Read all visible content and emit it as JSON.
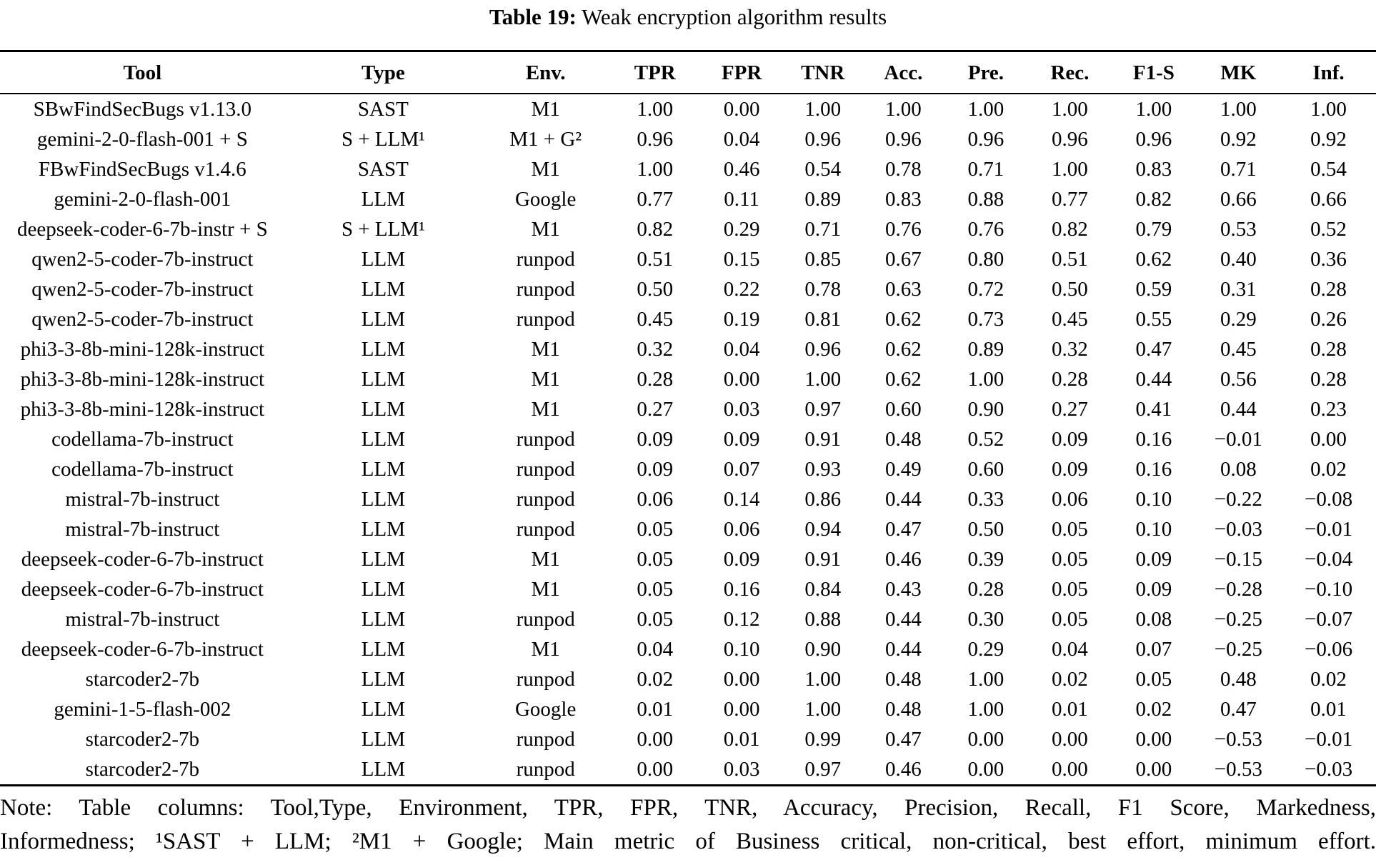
{
  "caption": {
    "label": "Table 19:",
    "text": " Weak encryption algorithm results"
  },
  "table": {
    "columns": [
      "Tool",
      "Type",
      "Env.",
      "TPR",
      "FPR",
      "TNR",
      "Acc.",
      "Pre.",
      "Rec.",
      "F1-S",
      "MK",
      "Inf."
    ],
    "column_widths_pct": [
      20.7,
      14.3,
      9.3,
      6.6,
      6.0,
      5.8,
      5.9,
      6.1,
      6.1,
      6.1,
      6.2,
      6.9
    ],
    "rows": [
      [
        "SBwFindSecBugs v1.13.0",
        "SAST",
        "M1",
        "1.00",
        "0.00",
        "1.00",
        "1.00",
        "1.00",
        "1.00",
        "1.00",
        "1.00",
        "1.00"
      ],
      [
        "gemini-2-0-flash-001 + S",
        "S + LLM¹",
        "M1 + G²",
        "0.96",
        "0.04",
        "0.96",
        "0.96",
        "0.96",
        "0.96",
        "0.96",
        "0.92",
        "0.92"
      ],
      [
        "FBwFindSecBugs v1.4.6",
        "SAST",
        "M1",
        "1.00",
        "0.46",
        "0.54",
        "0.78",
        "0.71",
        "1.00",
        "0.83",
        "0.71",
        "0.54"
      ],
      [
        "gemini-2-0-flash-001",
        "LLM",
        "Google",
        "0.77",
        "0.11",
        "0.89",
        "0.83",
        "0.88",
        "0.77",
        "0.82",
        "0.66",
        "0.66"
      ],
      [
        "deepseek-coder-6-7b-instr + S",
        "S + LLM¹",
        "M1",
        "0.82",
        "0.29",
        "0.71",
        "0.76",
        "0.76",
        "0.82",
        "0.79",
        "0.53",
        "0.52"
      ],
      [
        "qwen2-5-coder-7b-instruct",
        "LLM",
        "runpod",
        "0.51",
        "0.15",
        "0.85",
        "0.67",
        "0.80",
        "0.51",
        "0.62",
        "0.40",
        "0.36"
      ],
      [
        "qwen2-5-coder-7b-instruct",
        "LLM",
        "runpod",
        "0.50",
        "0.22",
        "0.78",
        "0.63",
        "0.72",
        "0.50",
        "0.59",
        "0.31",
        "0.28"
      ],
      [
        "qwen2-5-coder-7b-instruct",
        "LLM",
        "runpod",
        "0.45",
        "0.19",
        "0.81",
        "0.62",
        "0.73",
        "0.45",
        "0.55",
        "0.29",
        "0.26"
      ],
      [
        "phi3-3-8b-mini-128k-instruct",
        "LLM",
        "M1",
        "0.32",
        "0.04",
        "0.96",
        "0.62",
        "0.89",
        "0.32",
        "0.47",
        "0.45",
        "0.28"
      ],
      [
        "phi3-3-8b-mini-128k-instruct",
        "LLM",
        "M1",
        "0.28",
        "0.00",
        "1.00",
        "0.62",
        "1.00",
        "0.28",
        "0.44",
        "0.56",
        "0.28"
      ],
      [
        "phi3-3-8b-mini-128k-instruct",
        "LLM",
        "M1",
        "0.27",
        "0.03",
        "0.97",
        "0.60",
        "0.90",
        "0.27",
        "0.41",
        "0.44",
        "0.23"
      ],
      [
        "codellama-7b-instruct",
        "LLM",
        "runpod",
        "0.09",
        "0.09",
        "0.91",
        "0.48",
        "0.52",
        "0.09",
        "0.16",
        "−0.01",
        "0.00"
      ],
      [
        "codellama-7b-instruct",
        "LLM",
        "runpod",
        "0.09",
        "0.07",
        "0.93",
        "0.49",
        "0.60",
        "0.09",
        "0.16",
        "0.08",
        "0.02"
      ],
      [
        "mistral-7b-instruct",
        "LLM",
        "runpod",
        "0.06",
        "0.14",
        "0.86",
        "0.44",
        "0.33",
        "0.06",
        "0.10",
        "−0.22",
        "−0.08"
      ],
      [
        "mistral-7b-instruct",
        "LLM",
        "runpod",
        "0.05",
        "0.06",
        "0.94",
        "0.47",
        "0.50",
        "0.05",
        "0.10",
        "−0.03",
        "−0.01"
      ],
      [
        "deepseek-coder-6-7b-instruct",
        "LLM",
        "M1",
        "0.05",
        "0.09",
        "0.91",
        "0.46",
        "0.39",
        "0.05",
        "0.09",
        "−0.15",
        "−0.04"
      ],
      [
        "deepseek-coder-6-7b-instruct",
        "LLM",
        "M1",
        "0.05",
        "0.16",
        "0.84",
        "0.43",
        "0.28",
        "0.05",
        "0.09",
        "−0.28",
        "−0.10"
      ],
      [
        "mistral-7b-instruct",
        "LLM",
        "runpod",
        "0.05",
        "0.12",
        "0.88",
        "0.44",
        "0.30",
        "0.05",
        "0.08",
        "−0.25",
        "−0.07"
      ],
      [
        "deepseek-coder-6-7b-instruct",
        "LLM",
        "M1",
        "0.04",
        "0.10",
        "0.90",
        "0.44",
        "0.29",
        "0.04",
        "0.07",
        "−0.25",
        "−0.06"
      ],
      [
        "starcoder2-7b",
        "LLM",
        "runpod",
        "0.02",
        "0.00",
        "1.00",
        "0.48",
        "1.00",
        "0.02",
        "0.05",
        "0.48",
        "0.02"
      ],
      [
        "gemini-1-5-flash-002",
        "LLM",
        "Google",
        "0.01",
        "0.00",
        "1.00",
        "0.48",
        "1.00",
        "0.01",
        "0.02",
        "0.47",
        "0.01"
      ],
      [
        "starcoder2-7b",
        "LLM",
        "runpod",
        "0.00",
        "0.01",
        "0.99",
        "0.47",
        "0.00",
        "0.00",
        "0.00",
        "−0.53",
        "−0.01"
      ],
      [
        "starcoder2-7b",
        "LLM",
        "runpod",
        "0.00",
        "0.03",
        "0.97",
        "0.46",
        "0.00",
        "0.00",
        "0.00",
        "−0.53",
        "−0.03"
      ]
    ]
  },
  "note": {
    "line1": "Note: Table columns: Tool,Type, Environment, TPR, FPR, TNR, Accuracy, Precision, Recall, F1 Score, Markedness,",
    "line2": "Informedness; ¹SAST + LLM; ²M1 + Google; Main metric of Business critical, non-critical, best effort, minimum effort."
  }
}
